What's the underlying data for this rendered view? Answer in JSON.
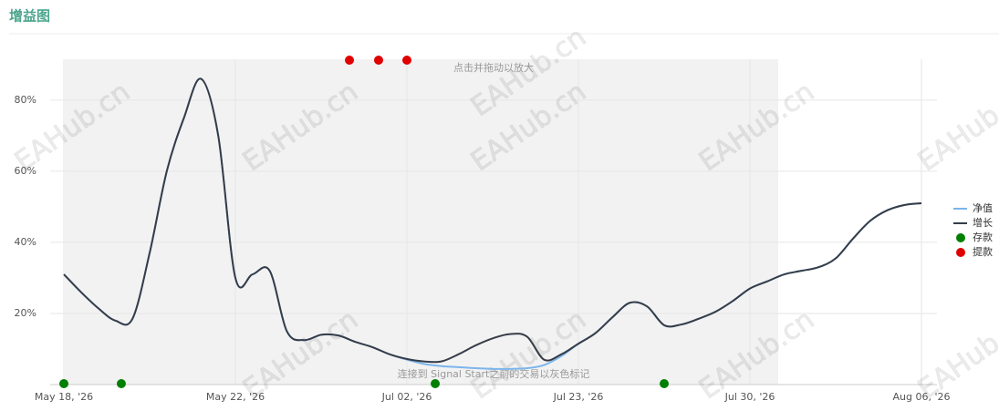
{
  "chart_data": {
    "type": "line",
    "title": "增益图",
    "annotations": [
      "点击并拖动以放大",
      "连接到 Signal Start之前的交易以灰色标记"
    ],
    "watermark": "EAHub.cn",
    "categories": [
      "May 18, '26",
      null,
      null,
      null,
      null,
      null,
      null,
      null,
      null,
      null,
      "May 22, '26",
      null,
      null,
      null,
      null,
      null,
      null,
      null,
      null,
      null,
      "Jul 02, '26",
      null,
      null,
      null,
      null,
      null,
      null,
      null,
      null,
      null,
      "Jul 23, '26",
      null,
      null,
      null,
      null,
      null,
      null,
      null,
      null,
      null,
      "Jul 30, '26",
      null,
      null,
      null,
      null,
      null,
      null,
      null,
      null,
      null,
      "Aug 06, '26"
    ],
    "series": [
      {
        "name": "净值",
        "color": "#7cb5ec",
        "values": [
          31,
          26,
          21.5,
          18,
          18.5,
          37,
          60,
          75,
          86,
          70,
          30,
          31,
          32,
          15,
          12.5,
          14,
          13.8,
          12,
          10.5,
          8.5,
          7,
          5.8,
          5.2,
          4.9,
          4.6,
          4.4,
          4.4,
          4.6,
          5.5,
          8,
          11.5,
          14.5,
          19,
          23,
          22,
          16.7,
          16.9,
          18.5,
          20.5,
          23.5,
          27,
          29,
          31,
          32,
          33,
          35.5,
          41,
          46,
          49,
          50.5,
          51
        ]
      },
      {
        "name": "增长",
        "color": "#363d48",
        "values": [
          31,
          26,
          21.5,
          18,
          18.5,
          37,
          60,
          75,
          86,
          70,
          30,
          31,
          32,
          15,
          12.5,
          14,
          13.8,
          12,
          10.5,
          8.5,
          7.2,
          6.5,
          6.5,
          8.5,
          11,
          13,
          14.2,
          13.5,
          7,
          8.5,
          11.5,
          14.5,
          19,
          23,
          22,
          16.7,
          16.9,
          18.5,
          20.5,
          23.5,
          27,
          29,
          31,
          32,
          33,
          35.5,
          41,
          46,
          49,
          50.5,
          51
        ]
      }
    ],
    "events": [
      {
        "name": "存款",
        "color": "#008000",
        "x": [
          0,
          3.35,
          21.65,
          35
        ]
      },
      {
        "name": "提款",
        "color": "#e00000",
        "x": [
          16.65,
          18.35,
          20
        ]
      }
    ],
    "ylim": [
      0,
      91.5
    ],
    "yticks": [
      {
        "value": 20,
        "label": "20%"
      },
      {
        "value": 40,
        "label": "40%"
      },
      {
        "value": 60,
        "label": "60%"
      },
      {
        "value": 80,
        "label": "80%"
      }
    ],
    "grid": true
  }
}
